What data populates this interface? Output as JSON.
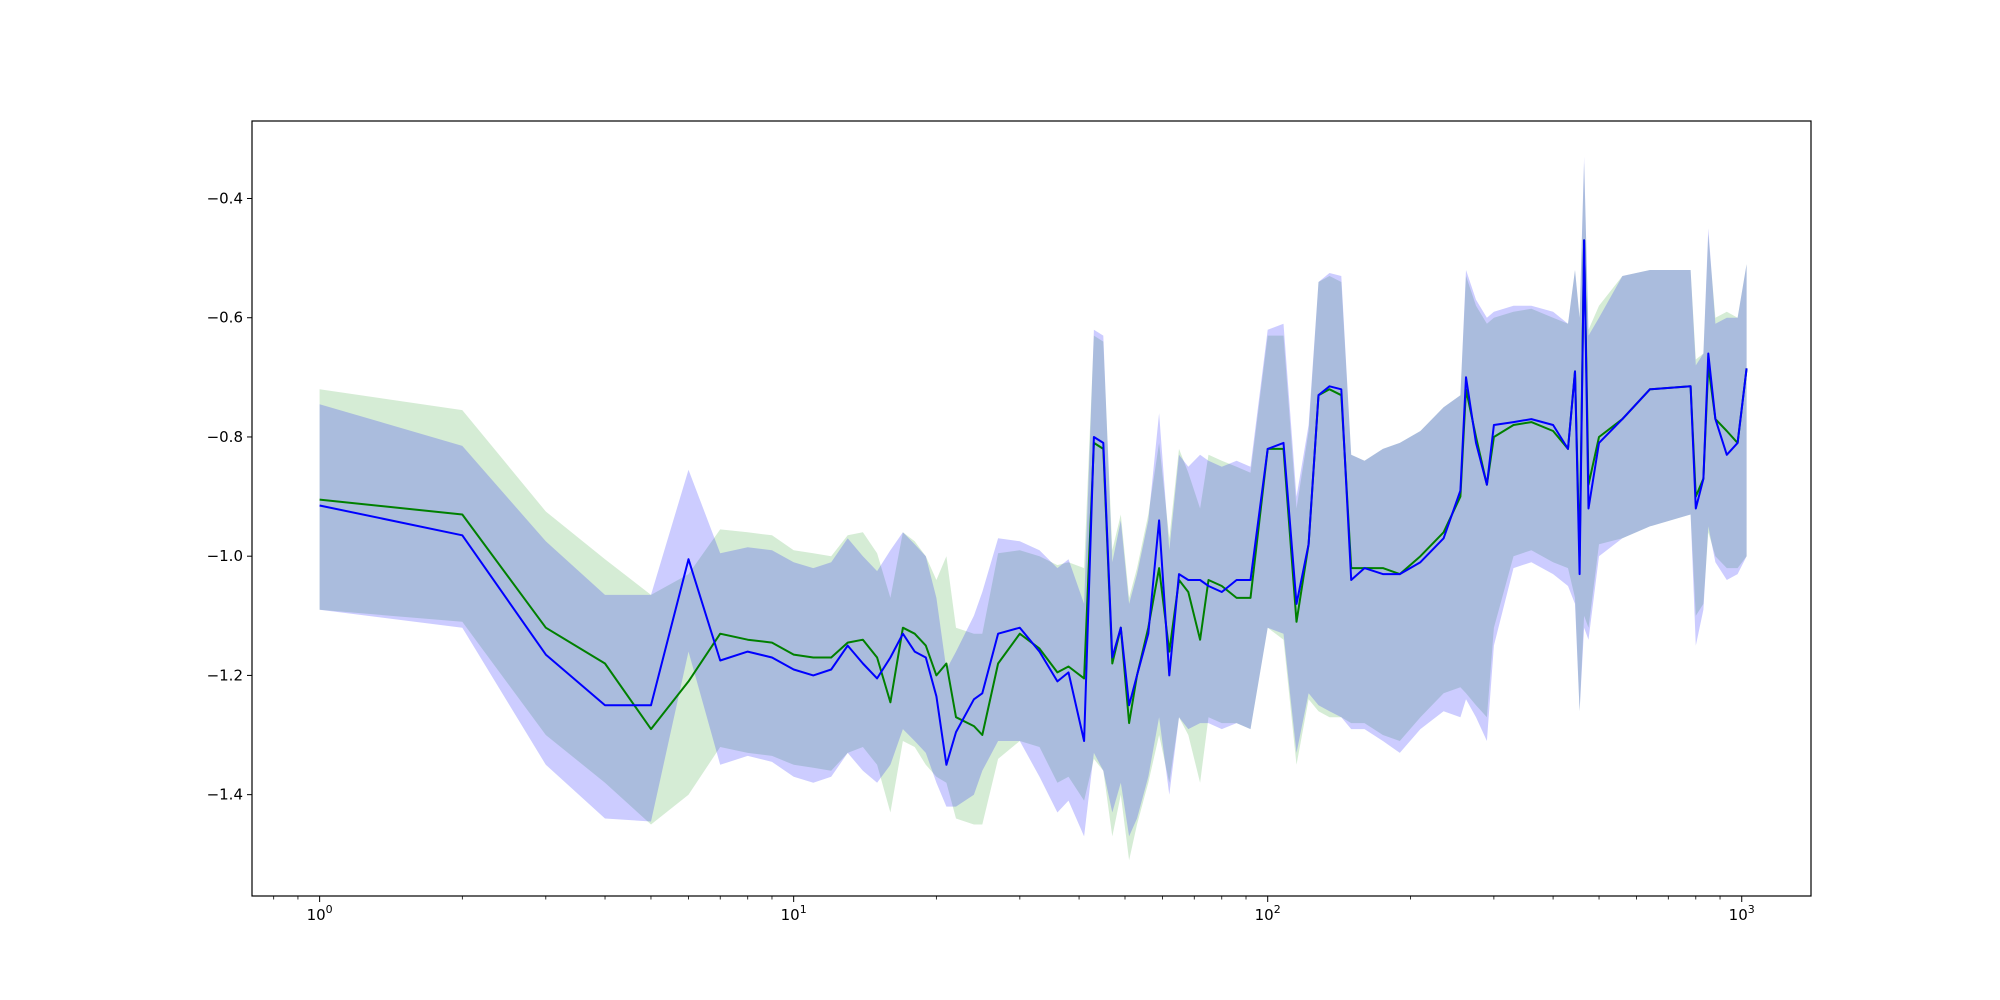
{
  "chart_data": {
    "type": "line",
    "title": "",
    "xlabel": "",
    "ylabel": "",
    "xscale": "log",
    "xlim": [
      0.72,
      1400
    ],
    "ylim": [
      -1.57,
      -0.27
    ],
    "grid": false,
    "legend": "none",
    "x_ticks": [
      {
        "value": 1,
        "base": "10",
        "exp": "0"
      },
      {
        "value": 10,
        "base": "10",
        "exp": "1"
      },
      {
        "value": 100,
        "base": "10",
        "exp": "2"
      },
      {
        "value": 1000,
        "base": "10",
        "exp": "3"
      }
    ],
    "y_ticks": [
      {
        "value": -0.4,
        "label": "−0.4"
      },
      {
        "value": -0.6,
        "label": "−0.6"
      },
      {
        "value": -0.8,
        "label": "−0.8"
      },
      {
        "value": -1.0,
        "label": "−1.0"
      },
      {
        "value": -1.2,
        "label": "−1.2"
      },
      {
        "value": -1.4,
        "label": "−1.4"
      }
    ],
    "series": [
      {
        "color": "#008000",
        "band_color": "#2ca02c",
        "points": [
          [
            1,
            -0.905,
            -1.09,
            -0.72
          ],
          [
            2,
            -0.93,
            -1.11,
            -0.755
          ],
          [
            3,
            -1.12,
            -1.3,
            -0.925
          ],
          [
            4,
            -1.18,
            -1.38,
            -1.005
          ],
          [
            5,
            -1.29,
            -1.45,
            -1.065
          ],
          [
            6,
            -1.21,
            -1.4,
            -1.03
          ],
          [
            7,
            -1.13,
            -1.32,
            -0.955
          ],
          [
            8,
            -1.14,
            -1.33,
            -0.96
          ],
          [
            9,
            -1.145,
            -1.335,
            -0.965
          ],
          [
            10,
            -1.165,
            -1.35,
            -0.99
          ],
          [
            11,
            -1.17,
            -1.355,
            -0.995
          ],
          [
            12,
            -1.17,
            -1.36,
            -1.0
          ],
          [
            13,
            -1.145,
            -1.33,
            -0.965
          ],
          [
            14,
            -1.14,
            -1.32,
            -0.96
          ],
          [
            15,
            -1.17,
            -1.35,
            -0.995
          ],
          [
            16,
            -1.245,
            -1.43,
            -1.07
          ],
          [
            17,
            -1.12,
            -1.31,
            -0.96
          ],
          [
            18,
            -1.13,
            -1.32,
            -0.975
          ],
          [
            19,
            -1.15,
            -1.35,
            -1.0
          ],
          [
            20,
            -1.2,
            -1.37,
            -1.04
          ],
          [
            21,
            -1.18,
            -1.38,
            -1.0
          ],
          [
            22,
            -1.27,
            -1.44,
            -1.12
          ],
          [
            24,
            -1.285,
            -1.45,
            -1.13
          ],
          [
            25,
            -1.3,
            -1.45,
            -1.13
          ],
          [
            27,
            -1.18,
            -1.34,
            -0.995
          ],
          [
            30,
            -1.13,
            -1.31,
            -0.99
          ],
          [
            33,
            -1.155,
            -1.32,
            -1.0
          ],
          [
            36,
            -1.195,
            -1.38,
            -1.015
          ],
          [
            38,
            -1.185,
            -1.37,
            -1.01
          ],
          [
            41,
            -1.205,
            -1.41,
            -1.02
          ],
          [
            43,
            -0.81,
            -1.34,
            -0.63
          ],
          [
            45,
            -0.82,
            -1.36,
            -0.64
          ],
          [
            47,
            -1.18,
            -1.47,
            -0.99
          ],
          [
            49,
            -1.12,
            -1.4,
            -0.93
          ],
          [
            51,
            -1.28,
            -1.51,
            -1.07
          ],
          [
            53,
            -1.2,
            -1.45,
            -1.02
          ],
          [
            56,
            -1.12,
            -1.38,
            -0.93
          ],
          [
            59,
            -1.02,
            -1.3,
            -0.81
          ],
          [
            62,
            -1.16,
            -1.38,
            -0.97
          ],
          [
            65,
            -1.04,
            -1.27,
            -0.82
          ],
          [
            68,
            -1.06,
            -1.3,
            -0.86
          ],
          [
            72,
            -1.14,
            -1.38,
            -0.92
          ],
          [
            75,
            -1.04,
            -1.27,
            -0.83
          ],
          [
            80,
            -1.05,
            -1.28,
            -0.84
          ],
          [
            86,
            -1.07,
            -1.28,
            -0.85
          ],
          [
            92,
            -1.07,
            -1.29,
            -0.86
          ],
          [
            100,
            -0.82,
            -1.12,
            -0.63
          ],
          [
            108,
            -0.82,
            -1.14,
            -0.63
          ],
          [
            115,
            -1.11,
            -1.35,
            -0.92
          ],
          [
            122,
            -0.98,
            -1.24,
            -0.79
          ],
          [
            128,
            -0.73,
            -1.26,
            -0.54
          ],
          [
            135,
            -0.72,
            -1.27,
            -0.53
          ],
          [
            143,
            -0.73,
            -1.27,
            -0.54
          ],
          [
            150,
            -1.02,
            -1.28,
            -0.83
          ],
          [
            160,
            -1.02,
            -1.28,
            -0.84
          ],
          [
            175,
            -1.02,
            -1.3,
            -0.82
          ],
          [
            190,
            -1.03,
            -1.31,
            -0.81
          ],
          [
            210,
            -1.0,
            -1.27,
            -0.79
          ],
          [
            235,
            -0.96,
            -1.23,
            -0.75
          ],
          [
            255,
            -0.9,
            -1.22,
            -0.73
          ],
          [
            262,
            -0.72,
            -1.23,
            -0.53
          ],
          [
            275,
            -0.8,
            -1.25,
            -0.58
          ],
          [
            290,
            -0.88,
            -1.27,
            -0.61
          ],
          [
            300,
            -0.8,
            -1.12,
            -0.6
          ],
          [
            330,
            -0.78,
            -1.0,
            -0.59
          ],
          [
            360,
            -0.775,
            -0.99,
            -0.585
          ],
          [
            400,
            -0.79,
            -1.01,
            -0.6
          ],
          [
            430,
            -0.82,
            -1.02,
            -0.61
          ],
          [
            445,
            -0.69,
            -1.07,
            -0.52
          ],
          [
            455,
            -1.0,
            -1.26,
            -0.6
          ],
          [
            465,
            -0.47,
            -1.1,
            -0.34
          ],
          [
            475,
            -0.88,
            -1.12,
            -0.62
          ],
          [
            500,
            -0.8,
            -0.98,
            -0.58
          ],
          [
            560,
            -0.77,
            -0.97,
            -0.53
          ],
          [
            640,
            -0.72,
            -0.95,
            -0.52
          ],
          [
            780,
            -0.715,
            -0.93,
            -0.52
          ],
          [
            800,
            -0.9,
            -1.1,
            -0.67
          ],
          [
            830,
            -0.87,
            -1.08,
            -0.66
          ],
          [
            850,
            -0.68,
            -0.96,
            -0.46
          ],
          [
            880,
            -0.77,
            -1.0,
            -0.6
          ],
          [
            930,
            -0.79,
            -1.02,
            -0.59
          ],
          [
            980,
            -0.81,
            -1.02,
            -0.6
          ],
          [
            1024,
            -0.685,
            -1.0,
            -0.51
          ]
        ]
      },
      {
        "color": "#0000ff",
        "band_color": "#0000ff",
        "points": [
          [
            1,
            -0.915,
            -1.09,
            -0.745
          ],
          [
            2,
            -0.965,
            -1.12,
            -0.815
          ],
          [
            3,
            -1.165,
            -1.35,
            -0.975
          ],
          [
            4,
            -1.25,
            -1.44,
            -1.065
          ],
          [
            5,
            -1.25,
            -1.445,
            -1.065
          ],
          [
            6,
            -1.005,
            -1.16,
            -0.855
          ],
          [
            7,
            -1.175,
            -1.35,
            -0.995
          ],
          [
            8,
            -1.16,
            -1.335,
            -0.985
          ],
          [
            9,
            -1.17,
            -1.345,
            -0.99
          ],
          [
            10,
            -1.19,
            -1.37,
            -1.01
          ],
          [
            11,
            -1.2,
            -1.38,
            -1.02
          ],
          [
            12,
            -1.19,
            -1.37,
            -1.01
          ],
          [
            13,
            -1.15,
            -1.33,
            -0.97
          ],
          [
            14,
            -1.18,
            -1.36,
            -1.0
          ],
          [
            15,
            -1.205,
            -1.38,
            -1.025
          ],
          [
            16,
            -1.17,
            -1.35,
            -0.99
          ],
          [
            17,
            -1.13,
            -1.29,
            -0.96
          ],
          [
            18,
            -1.16,
            -1.31,
            -0.98
          ],
          [
            19,
            -1.17,
            -1.33,
            -1.0
          ],
          [
            20,
            -1.235,
            -1.38,
            -1.07
          ],
          [
            21,
            -1.35,
            -1.42,
            -1.19
          ],
          [
            22,
            -1.295,
            -1.42,
            -1.16
          ],
          [
            24,
            -1.24,
            -1.4,
            -1.1
          ],
          [
            25,
            -1.23,
            -1.36,
            -1.06
          ],
          [
            27,
            -1.13,
            -1.31,
            -0.97
          ],
          [
            30,
            -1.12,
            -1.31,
            -0.975
          ],
          [
            33,
            -1.16,
            -1.37,
            -0.99
          ],
          [
            36,
            -1.21,
            -1.43,
            -1.02
          ],
          [
            38,
            -1.195,
            -1.41,
            -1.005
          ],
          [
            41,
            -1.31,
            -1.47,
            -1.08
          ],
          [
            43,
            -0.8,
            -1.33,
            -0.62
          ],
          [
            45,
            -0.81,
            -1.36,
            -0.63
          ],
          [
            47,
            -1.17,
            -1.43,
            -1.01
          ],
          [
            49,
            -1.12,
            -1.38,
            -0.94
          ],
          [
            51,
            -1.25,
            -1.47,
            -1.08
          ],
          [
            53,
            -1.2,
            -1.44,
            -1.03
          ],
          [
            56,
            -1.13,
            -1.37,
            -0.94
          ],
          [
            59,
            -0.94,
            -1.27,
            -0.76
          ],
          [
            62,
            -1.2,
            -1.4,
            -0.99
          ],
          [
            65,
            -1.03,
            -1.27,
            -0.83
          ],
          [
            68,
            -1.04,
            -1.29,
            -0.85
          ],
          [
            72,
            -1.04,
            -1.28,
            -0.83
          ],
          [
            75,
            -1.05,
            -1.28,
            -0.84
          ],
          [
            80,
            -1.06,
            -1.29,
            -0.85
          ],
          [
            86,
            -1.04,
            -1.28,
            -0.84
          ],
          [
            92,
            -1.04,
            -1.29,
            -0.85
          ],
          [
            100,
            -0.82,
            -1.12,
            -0.62
          ],
          [
            108,
            -0.81,
            -1.13,
            -0.61
          ],
          [
            115,
            -1.08,
            -1.33,
            -0.9
          ],
          [
            122,
            -0.98,
            -1.23,
            -0.78
          ],
          [
            128,
            -0.73,
            -1.25,
            -0.54
          ],
          [
            135,
            -0.715,
            -1.26,
            -0.525
          ],
          [
            143,
            -0.72,
            -1.27,
            -0.53
          ],
          [
            150,
            -1.04,
            -1.29,
            -0.83
          ],
          [
            160,
            -1.02,
            -1.29,
            -0.84
          ],
          [
            175,
            -1.03,
            -1.31,
            -0.82
          ],
          [
            190,
            -1.03,
            -1.33,
            -0.81
          ],
          [
            210,
            -1.01,
            -1.29,
            -0.79
          ],
          [
            235,
            -0.97,
            -1.26,
            -0.75
          ],
          [
            255,
            -0.89,
            -1.27,
            -0.73
          ],
          [
            262,
            -0.7,
            -1.24,
            -0.52
          ],
          [
            275,
            -0.81,
            -1.27,
            -0.57
          ],
          [
            290,
            -0.88,
            -1.31,
            -0.6
          ],
          [
            300,
            -0.78,
            -1.15,
            -0.59
          ],
          [
            330,
            -0.775,
            -1.02,
            -0.58
          ],
          [
            360,
            -0.77,
            -1.01,
            -0.58
          ],
          [
            400,
            -0.78,
            -1.03,
            -0.59
          ],
          [
            430,
            -0.82,
            -1.05,
            -0.61
          ],
          [
            445,
            -0.69,
            -1.08,
            -0.52
          ],
          [
            455,
            -1.03,
            -1.26,
            -0.6
          ],
          [
            465,
            -0.47,
            -1.12,
            -0.33
          ],
          [
            475,
            -0.92,
            -1.14,
            -0.63
          ],
          [
            500,
            -0.81,
            -1.0,
            -0.6
          ],
          [
            560,
            -0.77,
            -0.97,
            -0.53
          ],
          [
            640,
            -0.72,
            -0.95,
            -0.52
          ],
          [
            780,
            -0.715,
            -0.93,
            -0.52
          ],
          [
            800,
            -0.92,
            -1.15,
            -0.68
          ],
          [
            830,
            -0.87,
            -1.09,
            -0.66
          ],
          [
            850,
            -0.66,
            -0.95,
            -0.45
          ],
          [
            880,
            -0.77,
            -1.01,
            -0.61
          ],
          [
            930,
            -0.83,
            -1.04,
            -0.6
          ],
          [
            980,
            -0.81,
            -1.03,
            -0.6
          ],
          [
            1024,
            -0.685,
            -1.0,
            -0.51
          ]
        ]
      }
    ]
  }
}
